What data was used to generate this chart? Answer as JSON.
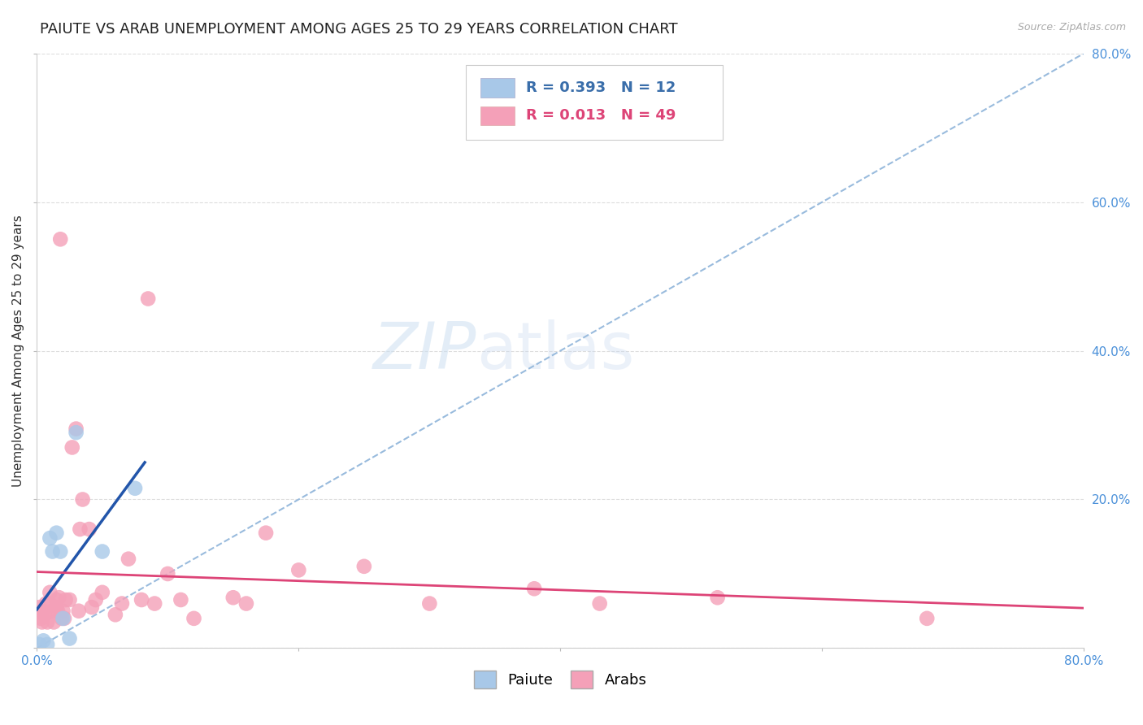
{
  "title": "PAIUTE VS ARAB UNEMPLOYMENT AMONG AGES 25 TO 29 YEARS CORRELATION CHART",
  "source": "Source: ZipAtlas.com",
  "ylabel": "Unemployment Among Ages 25 to 29 years",
  "watermark_zip": "ZIP",
  "watermark_atlas": "atlas",
  "xlim": [
    0.0,
    0.8
  ],
  "ylim": [
    0.0,
    0.8
  ],
  "paiute_R": 0.393,
  "paiute_N": 12,
  "arab_R": 0.013,
  "arab_N": 49,
  "paiute_color": "#a8c8e8",
  "arab_color": "#f4a0b8",
  "paiute_line_color": "#2255aa",
  "arab_line_color": "#dd4477",
  "diagonal_color": "#99bbdd",
  "paiute_scatter_x": [
    0.002,
    0.005,
    0.008,
    0.01,
    0.012,
    0.015,
    0.018,
    0.02,
    0.025,
    0.03,
    0.05,
    0.075
  ],
  "paiute_scatter_y": [
    0.005,
    0.01,
    0.005,
    0.148,
    0.13,
    0.155,
    0.13,
    0.04,
    0.013,
    0.29,
    0.13,
    0.215
  ],
  "arab_scatter_x": [
    0.002,
    0.003,
    0.004,
    0.005,
    0.006,
    0.007,
    0.008,
    0.01,
    0.01,
    0.012,
    0.013,
    0.015,
    0.015,
    0.016,
    0.017,
    0.018,
    0.019,
    0.02,
    0.021,
    0.022,
    0.025,
    0.027,
    0.03,
    0.032,
    0.033,
    0.035,
    0.04,
    0.042,
    0.045,
    0.05,
    0.06,
    0.065,
    0.07,
    0.08,
    0.085,
    0.09,
    0.1,
    0.11,
    0.12,
    0.15,
    0.16,
    0.175,
    0.2,
    0.25,
    0.3,
    0.38,
    0.43,
    0.52,
    0.68
  ],
  "arab_scatter_y": [
    0.055,
    0.04,
    0.035,
    0.05,
    0.045,
    0.06,
    0.035,
    0.06,
    0.075,
    0.05,
    0.035,
    0.055,
    0.065,
    0.05,
    0.068,
    0.55,
    0.04,
    0.05,
    0.04,
    0.065,
    0.065,
    0.27,
    0.295,
    0.05,
    0.16,
    0.2,
    0.16,
    0.055,
    0.065,
    0.075,
    0.045,
    0.06,
    0.12,
    0.065,
    0.47,
    0.06,
    0.1,
    0.065,
    0.04,
    0.068,
    0.06,
    0.155,
    0.105,
    0.11,
    0.06,
    0.08,
    0.06,
    0.068,
    0.04
  ],
  "background_color": "#ffffff",
  "grid_color": "#dddddd",
  "title_fontsize": 13,
  "axis_label_fontsize": 11,
  "tick_fontsize": 11,
  "legend_fontsize": 13
}
